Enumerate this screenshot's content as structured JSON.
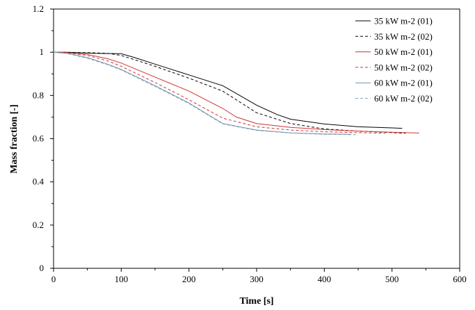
{
  "chart_data": {
    "type": "line",
    "title": "",
    "xlabel": "Time [s]",
    "ylabel": "Mass fraction [-]",
    "xlim": [
      0,
      600
    ],
    "ylim": [
      0,
      1.2
    ],
    "x_ticks": [
      0,
      100,
      200,
      300,
      400,
      500,
      600
    ],
    "y_ticks": [
      0,
      0.2,
      0.4,
      0.6,
      0.8,
      1,
      1.2
    ],
    "x_tick_labels": [
      "0",
      "100",
      "200",
      "300",
      "400",
      "500",
      "600"
    ],
    "y_tick_labels": [
      "0",
      "0.2",
      "0.4",
      "0.6",
      "0.8",
      "1",
      "1.2"
    ],
    "grid": false,
    "legend_position": "top-right",
    "series": [
      {
        "name": "35 kW m-2 (01)",
        "color": "#000000",
        "dash": "solid",
        "points": [
          [
            0,
            1.0
          ],
          [
            20,
            1.0
          ],
          [
            60,
            0.995
          ],
          [
            100,
            0.993
          ],
          [
            120,
            0.975
          ],
          [
            150,
            0.945
          ],
          [
            200,
            0.895
          ],
          [
            250,
            0.845
          ],
          [
            300,
            0.755
          ],
          [
            330,
            0.712
          ],
          [
            350,
            0.69
          ],
          [
            400,
            0.668
          ],
          [
            450,
            0.655
          ],
          [
            500,
            0.65
          ],
          [
            515,
            0.648
          ]
        ]
      },
      {
        "name": "35 kW m-2 (02)",
        "color": "#000000",
        "dash": "dashed",
        "points": [
          [
            0,
            1.0
          ],
          [
            20,
            1.0
          ],
          [
            50,
            0.998
          ],
          [
            80,
            0.995
          ],
          [
            100,
            0.985
          ],
          [
            120,
            0.965
          ],
          [
            150,
            0.935
          ],
          [
            200,
            0.88
          ],
          [
            250,
            0.82
          ],
          [
            300,
            0.72
          ],
          [
            350,
            0.67
          ],
          [
            400,
            0.645
          ],
          [
            450,
            0.635
          ],
          [
            500,
            0.628
          ],
          [
            520,
            0.625
          ]
        ]
      },
      {
        "name": "50 kW m-2 (01)",
        "color": "#cc3333",
        "dash": "solid",
        "points": [
          [
            0,
            1.0
          ],
          [
            20,
            0.998
          ],
          [
            50,
            0.99
          ],
          [
            80,
            0.97
          ],
          [
            100,
            0.95
          ],
          [
            150,
            0.885
          ],
          [
            200,
            0.82
          ],
          [
            250,
            0.74
          ],
          [
            270,
            0.7
          ],
          [
            300,
            0.67
          ],
          [
            350,
            0.652
          ],
          [
            400,
            0.642
          ],
          [
            450,
            0.635
          ],
          [
            500,
            0.63
          ],
          [
            540,
            0.626
          ]
        ]
      },
      {
        "name": "50 kW m-2 (02)",
        "color": "#cc3333",
        "dash": "dashed",
        "points": [
          [
            0,
            1.0
          ],
          [
            20,
            0.997
          ],
          [
            50,
            0.985
          ],
          [
            80,
            0.96
          ],
          [
            100,
            0.935
          ],
          [
            150,
            0.86
          ],
          [
            200,
            0.78
          ],
          [
            250,
            0.695
          ],
          [
            300,
            0.655
          ],
          [
            350,
            0.64
          ],
          [
            400,
            0.632
          ],
          [
            450,
            0.628
          ],
          [
            490,
            0.625
          ]
        ]
      },
      {
        "name": "60 kW m-2 (01)",
        "color": "#6f8fa8",
        "dash": "solid",
        "points": [
          [
            0,
            1.0
          ],
          [
            20,
            0.995
          ],
          [
            50,
            0.975
          ],
          [
            80,
            0.945
          ],
          [
            100,
            0.92
          ],
          [
            150,
            0.845
          ],
          [
            200,
            0.765
          ],
          [
            250,
            0.67
          ],
          [
            300,
            0.64
          ],
          [
            350,
            0.627
          ],
          [
            400,
            0.622
          ],
          [
            440,
            0.62
          ]
        ]
      },
      {
        "name": "60 kW m-2 (02)",
        "color": "#8aa4ba",
        "dash": "dashed",
        "points": [
          [
            0,
            1.0
          ],
          [
            20,
            0.994
          ],
          [
            50,
            0.972
          ],
          [
            80,
            0.942
          ],
          [
            100,
            0.918
          ],
          [
            150,
            0.842
          ],
          [
            200,
            0.762
          ],
          [
            250,
            0.668
          ],
          [
            300,
            0.638
          ],
          [
            350,
            0.626
          ],
          [
            400,
            0.62
          ],
          [
            450,
            0.618
          ]
        ]
      }
    ]
  }
}
